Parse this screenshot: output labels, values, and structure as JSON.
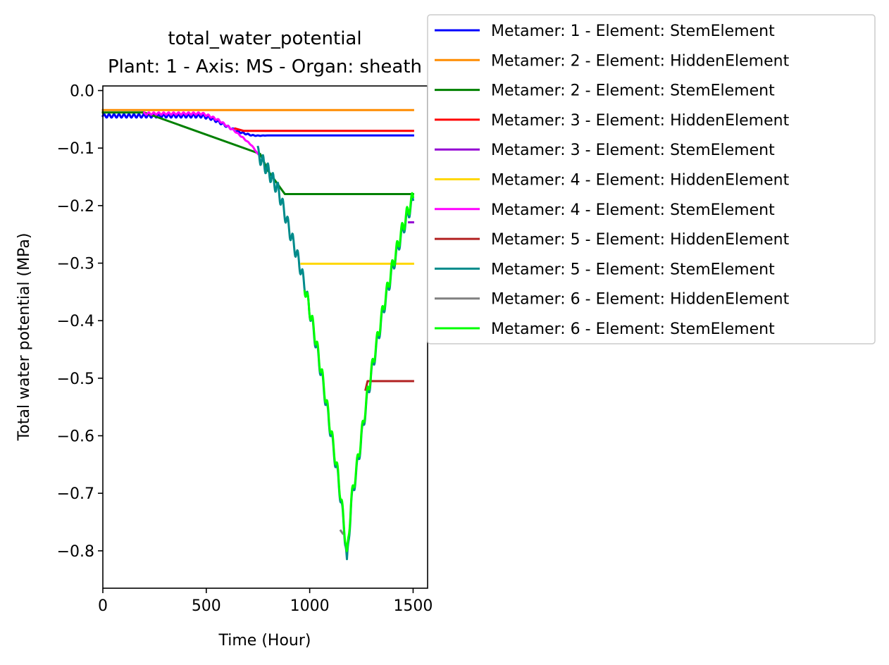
{
  "chart_data": {
    "type": "line",
    "title": "total_water_potential",
    "subtitle": "Plant: 1 - Axis: MS - Organ: sheath",
    "xlabel": "Time (Hour)",
    "ylabel": "Total water potential (MPa)",
    "xlim": [
      0,
      1570
    ],
    "ylim": [
      -0.865,
      0.008
    ],
    "xticks": [
      0,
      500,
      1000,
      1500
    ],
    "xtick_labels": [
      "0",
      "500",
      "1000",
      "1500"
    ],
    "yticks": [
      0.0,
      -0.1,
      -0.2,
      -0.3,
      -0.4,
      -0.5,
      -0.6,
      -0.7,
      -0.8
    ],
    "ytick_labels": [
      "0.0",
      "−0.1",
      "−0.2",
      "−0.3",
      "−0.4",
      "−0.5",
      "−0.6",
      "−0.7",
      "−0.8"
    ],
    "grid": false,
    "legend_placement": "outside-top-right",
    "series": [
      {
        "name": "Metamer: 1 - Element: StemElement",
        "color": "#0000ff",
        "x": [
          0,
          480,
          520,
          560,
          600,
          640,
          680,
          720,
          750,
          1500
        ],
        "y": [
          -0.041,
          -0.041,
          -0.045,
          -0.052,
          -0.06,
          -0.068,
          -0.073,
          -0.077,
          -0.078,
          -0.078
        ],
        "osc": 0.006
      },
      {
        "name": "Metamer: 2 - Element: HiddenElement",
        "color": "#ff8c00",
        "x": [
          0,
          1500
        ],
        "y": [
          -0.034,
          -0.034
        ]
      },
      {
        "name": "Metamer: 2 - Element: StemElement",
        "color": "#008000",
        "x": [
          0,
          200,
          760,
          800,
          840,
          880,
          1500
        ],
        "y": [
          -0.038,
          -0.038,
          -0.11,
          -0.14,
          -0.16,
          -0.18,
          -0.18
        ]
      },
      {
        "name": "Metamer: 3 - Element: HiddenElement",
        "color": "#ff0000",
        "x": [
          640,
          680,
          1500
        ],
        "y": [
          -0.066,
          -0.07,
          -0.07
        ]
      },
      {
        "name": "Metamer: 3 - Element: StemElement",
        "color": "#9400d3",
        "x": [
          1480,
          1500
        ],
        "y": [
          -0.229,
          -0.229
        ]
      },
      {
        "name": "Metamer: 4 - Element: HiddenElement",
        "color": "#ffd700",
        "x": [
          960,
          1500
        ],
        "y": [
          -0.301,
          -0.301
        ]
      },
      {
        "name": "Metamer: 4 - Element: StemElement",
        "color": "#ff00ff",
        "x": [
          200,
          480,
          520,
          560,
          600,
          640,
          680,
          720,
          750
        ],
        "y": [
          -0.038,
          -0.038,
          -0.043,
          -0.05,
          -0.06,
          -0.07,
          -0.082,
          -0.095,
          -0.11
        ],
        "osc": 0.004
      },
      {
        "name": "Metamer: 5 - Element: HiddenElement",
        "color": "#b22222",
        "x": [
          1270,
          1280,
          1500
        ],
        "y": [
          -0.52,
          -0.505,
          -0.505
        ]
      },
      {
        "name": "Metamer: 5 - Element: StemElement",
        "color": "#008b8b",
        "x": [
          750,
          800,
          850,
          900,
          950,
          980,
          1020,
          1060,
          1100,
          1140,
          1160,
          1175,
          1180,
          1200,
          1240,
          1280,
          1320,
          1360,
          1400,
          1440,
          1470,
          1500
        ],
        "y": [
          -0.11,
          -0.14,
          -0.175,
          -0.24,
          -0.3,
          -0.345,
          -0.42,
          -0.5,
          -0.59,
          -0.68,
          -0.74,
          -0.79,
          -0.825,
          -0.72,
          -0.63,
          -0.53,
          -0.45,
          -0.375,
          -0.31,
          -0.255,
          -0.22,
          -0.19
        ],
        "step": 0.012
      },
      {
        "name": "Metamer: 6 - Element: HiddenElement",
        "color": "#808080",
        "x": [
          1150,
          1160
        ],
        "y": [
          -0.765,
          -0.77
        ]
      },
      {
        "name": "Metamer: 6 - Element: StemElement",
        "color": "#00ff00",
        "x": [
          975,
          1020,
          1060,
          1100,
          1140,
          1160,
          1175,
          1180,
          1200,
          1240,
          1280,
          1320,
          1360,
          1400,
          1440,
          1470,
          1500
        ],
        "y": [
          -0.34,
          -0.415,
          -0.495,
          -0.585,
          -0.675,
          -0.735,
          -0.785,
          -0.815,
          -0.715,
          -0.625,
          -0.525,
          -0.445,
          -0.37,
          -0.305,
          -0.25,
          -0.215,
          -0.185
        ],
        "step": 0.012
      }
    ]
  }
}
